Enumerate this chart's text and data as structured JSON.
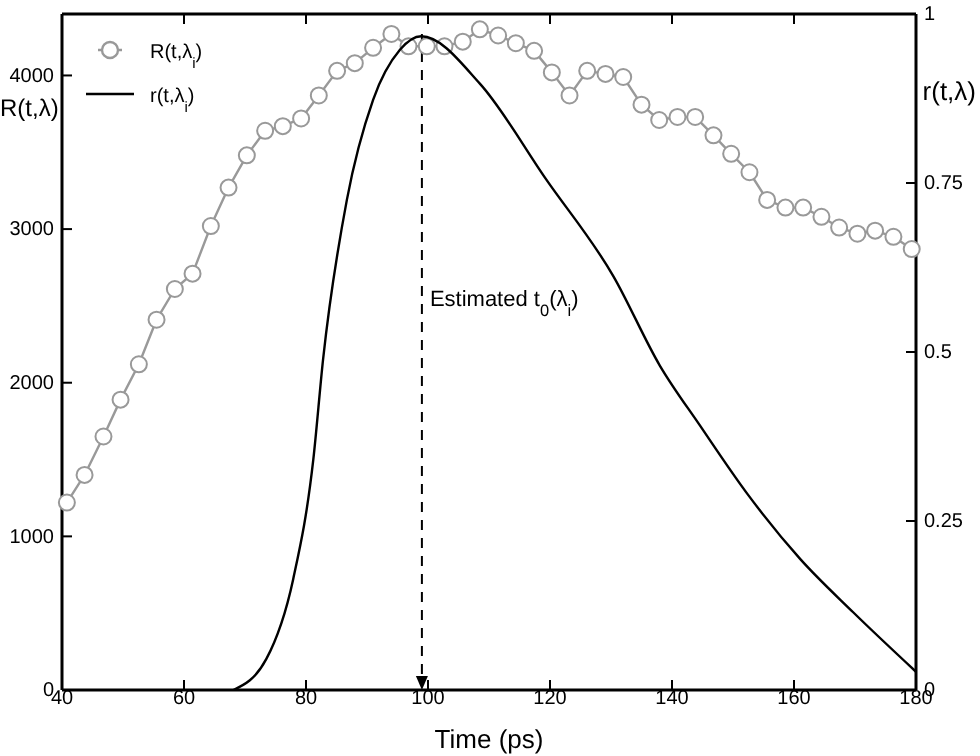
{
  "chart_data": {
    "type": "line",
    "xlabel": "Time (ps)",
    "ylabel": "R(t,λ)",
    "y2label": "r(t,λ)",
    "xlim": [
      40,
      180
    ],
    "xticks": [
      40,
      60,
      80,
      100,
      120,
      140,
      160,
      180
    ],
    "ylim": [
      0,
      4400
    ],
    "yticks": [
      0,
      1000,
      2000,
      3000,
      4000
    ],
    "y2lim": [
      0,
      1
    ],
    "y2ticks": [
      0,
      0.25,
      0.5,
      0.75,
      1
    ],
    "legend": "top left",
    "grid": false,
    "ref_lines": [
      {
        "axis": "x",
        "value": 99,
        "label": "Estimated t$_{0}$(λ$_{i}$)",
        "line_style": "dashed",
        "color": "#000000"
      }
    ],
    "series": [
      {
        "name": "R(t,λ$_{i}$)",
        "color": "#999999",
        "marker": "circle",
        "line_style": "solid",
        "x": [
          40.8,
          43.7,
          46.8,
          49.6,
          52.6,
          55.5,
          58.5,
          61.4,
          64.4,
          67.3,
          70.3,
          73.3,
          76.2,
          79.2,
          82.1,
          85.1,
          88.0,
          91.0,
          94.0,
          96.8,
          99.8,
          102.7,
          105.7,
          108.5,
          111.5,
          114.4,
          117.4,
          120.3,
          123.2,
          126.1,
          129.1,
          132.0,
          135.0,
          137.9,
          140.9,
          143.8,
          146.8,
          149.7,
          152.7,
          155.6,
          158.6,
          161.5,
          164.5,
          167.4,
          170.4,
          173.3,
          176.3,
          179.3
        ],
        "values": [
          1220,
          1400,
          1650,
          1890,
          2120,
          2410,
          2610,
          2710,
          3020,
          3270,
          3480,
          3640,
          3670,
          3720,
          3870,
          4030,
          4080,
          4180,
          4270,
          4190,
          4190,
          4190,
          4220,
          4300,
          4260,
          4210,
          4160,
          4020,
          3870,
          4030,
          4010,
          3990,
          3810,
          3710,
          3730,
          3730,
          3610,
          3490,
          3370,
          3190,
          3140,
          3140,
          3080,
          3010,
          2970,
          2990,
          2950,
          2870
        ]
      },
      {
        "name": "r(t,λ$_{i}$)",
        "color": "#000000",
        "marker": "none",
        "line_style": "solid",
        "axis": "y2",
        "x": [
          68.1,
          73.5,
          77.9,
          81.2,
          82.8,
          86.7,
          91.0,
          95.4,
          98.9,
          108.5,
          119.4,
          130.4,
          138.0,
          144.6,
          152.2,
          161.0,
          169.7,
          180
        ],
        "values": [
          0,
          0.046,
          0.164,
          0.341,
          0.489,
          0.725,
          0.873,
          0.947,
          0.967,
          0.897,
          0.755,
          0.612,
          0.48,
          0.391,
          0.292,
          0.194,
          0.115,
          0.027
        ]
      }
    ]
  }
}
